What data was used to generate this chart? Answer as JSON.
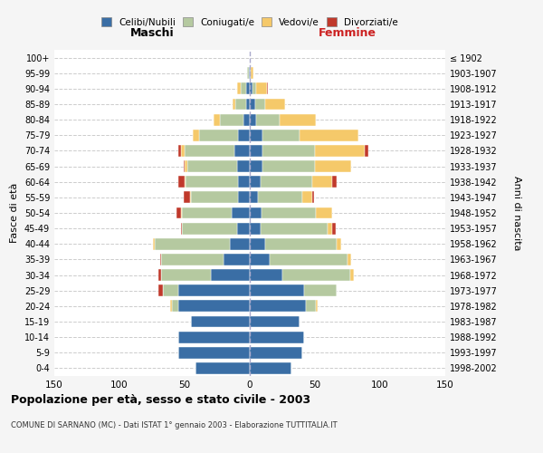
{
  "age_groups": [
    "0-4",
    "5-9",
    "10-14",
    "15-19",
    "20-24",
    "25-29",
    "30-34",
    "35-39",
    "40-44",
    "45-49",
    "50-54",
    "55-59",
    "60-64",
    "65-69",
    "70-74",
    "75-79",
    "80-84",
    "85-89",
    "90-94",
    "95-99",
    "100+"
  ],
  "birth_years": [
    "1998-2002",
    "1993-1997",
    "1988-1992",
    "1983-1987",
    "1978-1982",
    "1973-1977",
    "1968-1972",
    "1963-1967",
    "1958-1962",
    "1953-1957",
    "1948-1952",
    "1943-1947",
    "1938-1942",
    "1933-1937",
    "1928-1932",
    "1923-1927",
    "1918-1922",
    "1913-1917",
    "1908-1912",
    "1903-1907",
    "≤ 1902"
  ],
  "maschi": {
    "celibi": [
      42,
      55,
      55,
      45,
      55,
      55,
      30,
      20,
      15,
      10,
      14,
      9,
      9,
      10,
      12,
      9,
      5,
      3,
      3,
      1,
      0
    ],
    "coniugati": [
      0,
      0,
      0,
      0,
      5,
      12,
      38,
      48,
      58,
      42,
      38,
      36,
      40,
      38,
      38,
      30,
      18,
      8,
      4,
      1,
      0
    ],
    "vedovi": [
      0,
      0,
      0,
      0,
      1,
      0,
      0,
      0,
      1,
      0,
      1,
      1,
      1,
      2,
      3,
      5,
      5,
      2,
      3,
      0,
      0
    ],
    "divorziati": [
      0,
      0,
      0,
      0,
      0,
      3,
      2,
      1,
      0,
      1,
      3,
      5,
      5,
      1,
      2,
      0,
      0,
      0,
      0,
      0,
      0
    ]
  },
  "femmine": {
    "nubili": [
      32,
      40,
      42,
      38,
      43,
      42,
      25,
      15,
      12,
      8,
      9,
      6,
      8,
      10,
      10,
      10,
      5,
      4,
      2,
      1,
      0
    ],
    "coniugate": [
      0,
      0,
      0,
      0,
      8,
      25,
      52,
      60,
      55,
      52,
      42,
      34,
      40,
      40,
      40,
      28,
      18,
      8,
      3,
      0,
      0
    ],
    "vedove": [
      0,
      0,
      0,
      0,
      1,
      0,
      3,
      3,
      3,
      3,
      12,
      8,
      15,
      28,
      38,
      45,
      28,
      15,
      8,
      2,
      0
    ],
    "divorziate": [
      0,
      0,
      0,
      0,
      0,
      0,
      0,
      0,
      0,
      3,
      0,
      1,
      4,
      0,
      3,
      0,
      0,
      0,
      1,
      0,
      0
    ]
  },
  "colors": {
    "celibi_nubili": "#3a6ea5",
    "coniugati": "#b5c9a0",
    "vedovi": "#f5c96a",
    "divorziati": "#c0392b"
  },
  "title": "Popolazione per età, sesso e stato civile - 2003",
  "subtitle": "COMUNE DI SARNANO (MC) - Dati ISTAT 1° gennaio 2003 - Elaborazione TUTTITALIA.IT",
  "xlabel_left": "Maschi",
  "xlabel_right": "Femmine",
  "ylabel_left": "Fasce di età",
  "ylabel_right": "Anni di nascita",
  "xlim": 150,
  "background": "#f5f5f5",
  "plot_bg": "#ffffff",
  "legend_labels": [
    "Celibi/Nubili",
    "Coniugati/e",
    "Vedovi/e",
    "Divorziati/e"
  ]
}
